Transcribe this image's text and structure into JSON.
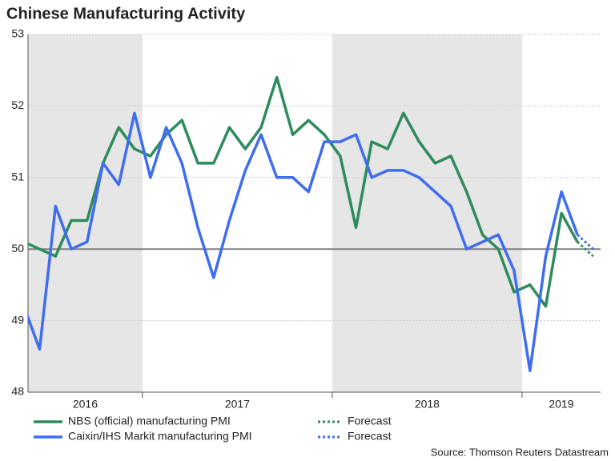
{
  "chart_data": {
    "type": "line",
    "title": "Chinese Manufacturing Activity",
    "source": "Source: Thomson Reuters Datastream",
    "xlim": [
      2016.397,
      2019.414
    ],
    "xticks": [
      2017,
      2018,
      2019
    ],
    "year_labels": [
      "2016",
      "2017",
      "2018",
      "2019"
    ],
    "shaded_years": [
      2016,
      2018
    ],
    "ylim": [
      48,
      53
    ],
    "yticks": [
      48,
      49,
      50,
      51,
      52,
      53
    ],
    "grid": true,
    "reference_line": 50,
    "x": [
      2016.375,
      2016.458,
      2016.542,
      2016.625,
      2016.708,
      2016.792,
      2016.875,
      2016.958,
      2017.042,
      2017.125,
      2017.208,
      2017.292,
      2017.375,
      2017.458,
      2017.542,
      2017.625,
      2017.708,
      2017.792,
      2017.875,
      2017.958,
      2018.042,
      2018.125,
      2018.208,
      2018.292,
      2018.375,
      2018.458,
      2018.542,
      2018.625,
      2018.708,
      2018.792,
      2018.875,
      2018.958,
      2019.042,
      2019.125,
      2019.208,
      2019.292
    ],
    "series": [
      {
        "name": "NBS (official) manufacturing PMI",
        "color": "#2e8b5c",
        "dashed": false,
        "values": [
          50.1,
          50.0,
          49.9,
          50.4,
          50.4,
          51.2,
          51.7,
          51.4,
          51.3,
          51.6,
          51.8,
          51.2,
          51.2,
          51.7,
          51.4,
          51.7,
          52.4,
          51.6,
          51.8,
          51.6,
          51.3,
          50.3,
          51.5,
          51.4,
          51.9,
          51.5,
          51.2,
          51.3,
          50.8,
          50.2,
          50.0,
          49.4,
          49.5,
          49.2,
          50.5,
          50.1
        ]
      },
      {
        "name": "Caixin/IHS Markit manufacturing PMI",
        "color": "#3f6df2",
        "dashed": false,
        "values": [
          49.2,
          48.6,
          50.6,
          50.0,
          50.1,
          51.2,
          50.9,
          51.9,
          51.0,
          51.7,
          51.2,
          50.3,
          49.6,
          50.4,
          51.1,
          51.6,
          51.0,
          51.0,
          50.8,
          51.5,
          51.5,
          51.6,
          51.0,
          51.1,
          51.1,
          51.0,
          50.8,
          50.6,
          50.0,
          50.1,
          50.2,
          49.7,
          48.3,
          49.9,
          50.8,
          50.2
        ]
      },
      {
        "name": "Forecast",
        "color": "#2e8b5c",
        "dashed": true,
        "x": [
          2019.292,
          2019.375
        ],
        "values": [
          50.1,
          49.9
        ]
      },
      {
        "name": "Forecast",
        "color": "#3f6df2",
        "dashed": true,
        "x": [
          2019.292,
          2019.375
        ],
        "values": [
          50.2,
          50.0
        ]
      }
    ]
  }
}
